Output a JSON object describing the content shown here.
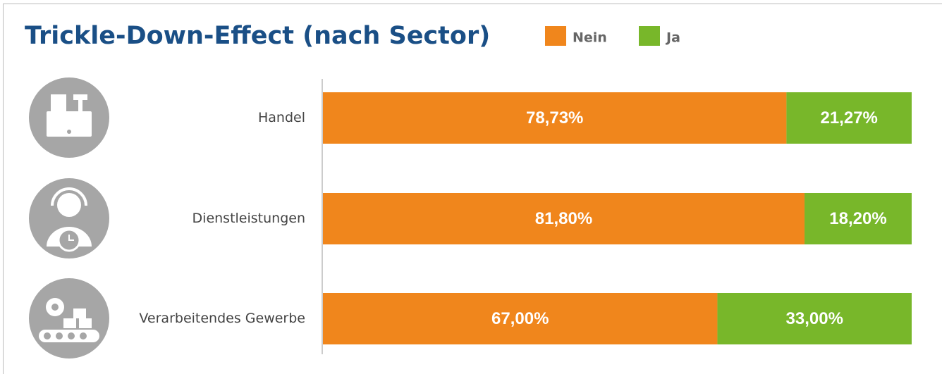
{
  "chart_data": {
    "type": "stacked-bar-horizontal",
    "title": "Trickle-Down-Effect (nach Sector)",
    "categories": [
      "Handel",
      "Dienstleistungen",
      "Verarbeitendes Gewerbe"
    ],
    "series": [
      {
        "name": "Nein",
        "color": "#f0861c",
        "values": [
          78.73,
          81.8,
          67.0
        ],
        "value_labels": [
          "78,73%",
          "81,80%",
          "67,00%"
        ]
      },
      {
        "name": "Ja",
        "color": "#78b72a",
        "values": [
          21.27,
          18.2,
          33.0
        ],
        "value_labels": [
          "21,27%",
          "18,20%",
          "33,00%"
        ]
      }
    ],
    "xlim": [
      0,
      100
    ]
  }
}
